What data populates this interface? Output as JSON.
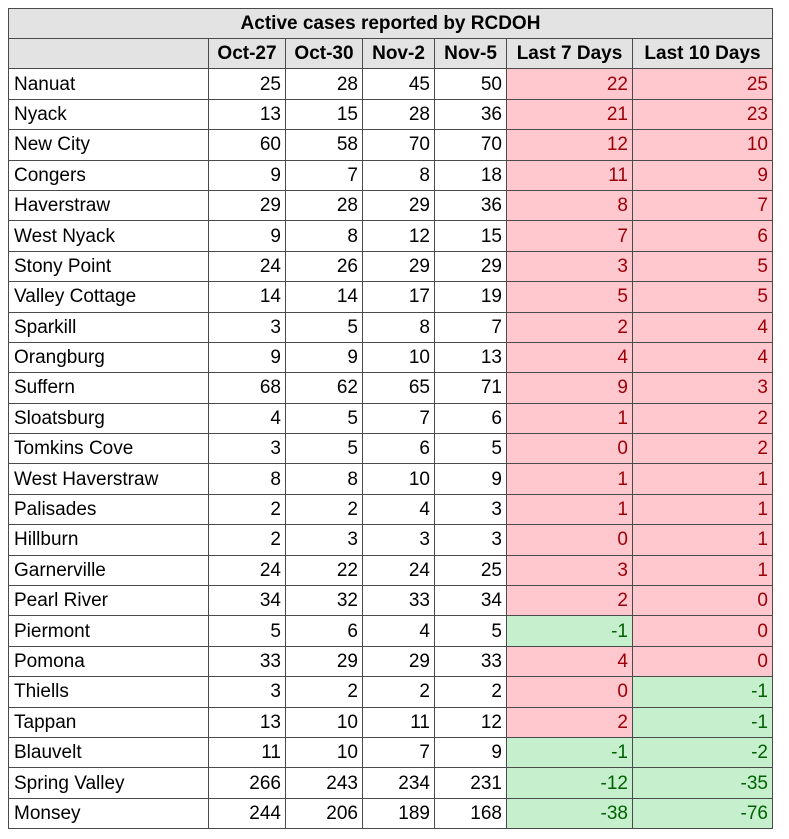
{
  "title": "Active cases  reported by RCDOH",
  "columns": [
    "Oct-27",
    "Oct-30",
    "Nov-2",
    "Nov-5",
    "Last 7 Days",
    "Last 10 Days"
  ],
  "colors": {
    "increase_fill": "#ffc7ce",
    "increase_text": "#9c0006",
    "decrease_fill": "#c6efce",
    "decrease_text": "#006100",
    "header_fill": "#e3e3e3"
  },
  "rows": [
    {
      "name": "Nanuat",
      "v": [
        25,
        28,
        45,
        50,
        22,
        25
      ]
    },
    {
      "name": "Nyack",
      "v": [
        13,
        15,
        28,
        36,
        21,
        23
      ]
    },
    {
      "name": "New City",
      "v": [
        60,
        58,
        70,
        70,
        12,
        10
      ]
    },
    {
      "name": "Congers",
      "v": [
        9,
        7,
        8,
        18,
        11,
        9
      ]
    },
    {
      "name": "Haverstraw",
      "v": [
        29,
        28,
        29,
        36,
        8,
        7
      ]
    },
    {
      "name": "West Nyack",
      "v": [
        9,
        8,
        12,
        15,
        7,
        6
      ]
    },
    {
      "name": "Stony Point",
      "v": [
        24,
        26,
        29,
        29,
        3,
        5
      ]
    },
    {
      "name": "Valley Cottage",
      "v": [
        14,
        14,
        17,
        19,
        5,
        5
      ]
    },
    {
      "name": "Sparkill",
      "v": [
        3,
        5,
        8,
        7,
        2,
        4
      ]
    },
    {
      "name": "Orangburg",
      "v": [
        9,
        9,
        10,
        13,
        4,
        4
      ]
    },
    {
      "name": "Suffern",
      "v": [
        68,
        62,
        65,
        71,
        9,
        3
      ]
    },
    {
      "name": "Sloatsburg",
      "v": [
        4,
        5,
        7,
        6,
        1,
        2
      ]
    },
    {
      "name": "Tomkins Cove",
      "v": [
        3,
        5,
        6,
        5,
        0,
        2
      ]
    },
    {
      "name": "West Haverstraw",
      "v": [
        8,
        8,
        10,
        9,
        1,
        1
      ]
    },
    {
      "name": "Palisades",
      "v": [
        2,
        2,
        4,
        3,
        1,
        1
      ]
    },
    {
      "name": "Hillburn",
      "v": [
        2,
        3,
        3,
        3,
        0,
        1
      ]
    },
    {
      "name": "Garnerville",
      "v": [
        24,
        22,
        24,
        25,
        3,
        1
      ]
    },
    {
      "name": "Pearl River",
      "v": [
        34,
        32,
        33,
        34,
        2,
        0
      ]
    },
    {
      "name": "Piermont",
      "v": [
        5,
        6,
        4,
        5,
        -1,
        0
      ]
    },
    {
      "name": "Pomona",
      "v": [
        33,
        29,
        29,
        33,
        4,
        0
      ]
    },
    {
      "name": "Thiells",
      "v": [
        3,
        2,
        2,
        2,
        0,
        -1
      ]
    },
    {
      "name": "Tappan",
      "v": [
        13,
        10,
        11,
        12,
        2,
        -1
      ]
    },
    {
      "name": "Blauvelt",
      "v": [
        11,
        10,
        7,
        9,
        -1,
        -2
      ]
    },
    {
      "name": "Spring Valley",
      "v": [
        266,
        243,
        234,
        231,
        -12,
        -35
      ]
    },
    {
      "name": "Monsey",
      "v": [
        244,
        206,
        189,
        168,
        -38,
        -76
      ]
    }
  ]
}
